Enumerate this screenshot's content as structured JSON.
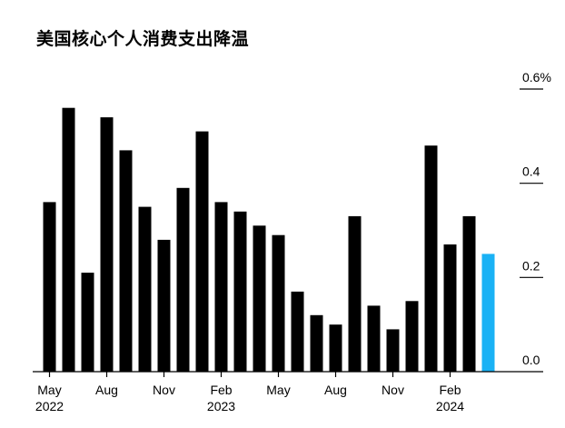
{
  "chart_data": {
    "type": "bar",
    "title": "美国核心个人消费支出降温",
    "xlabel": "",
    "ylabel": "",
    "ylim": [
      0,
      0.6
    ],
    "y_unit": "%",
    "y_ticks": [
      0.0,
      0.2,
      0.4,
      0.6
    ],
    "y_tick_labels": [
      "0.0",
      "0.2",
      "0.4",
      "0.6%"
    ],
    "categories": [
      "2022-05",
      "2022-06",
      "2022-07",
      "2022-08",
      "2022-09",
      "2022-10",
      "2022-11",
      "2022-12",
      "2023-01",
      "2023-02",
      "2023-03",
      "2023-04",
      "2023-05",
      "2023-06",
      "2023-07",
      "2023-08",
      "2023-09",
      "2023-10",
      "2023-11",
      "2023-12",
      "2024-01",
      "2024-02",
      "2024-03",
      "2024-04"
    ],
    "values": [
      0.36,
      0.56,
      0.21,
      0.54,
      0.47,
      0.35,
      0.28,
      0.39,
      0.51,
      0.36,
      0.34,
      0.31,
      0.29,
      0.17,
      0.12,
      0.1,
      0.33,
      0.14,
      0.09,
      0.15,
      0.48,
      0.27,
      0.33,
      0.25
    ],
    "highlight_index": 23,
    "x_tick_labels": [
      {
        "index": 0,
        "label": "May",
        "year": "2022"
      },
      {
        "index": 3,
        "label": "Aug",
        "year": ""
      },
      {
        "index": 6,
        "label": "Nov",
        "year": ""
      },
      {
        "index": 9,
        "label": "Feb",
        "year": "2023"
      },
      {
        "index": 12,
        "label": "May",
        "year": ""
      },
      {
        "index": 15,
        "label": "Aug",
        "year": ""
      },
      {
        "index": 18,
        "label": "Nov",
        "year": ""
      },
      {
        "index": 21,
        "label": "Feb",
        "year": "2024"
      }
    ],
    "colors": {
      "bar": "#000000",
      "highlight": "#1ab2f5",
      "axis": "#000000"
    },
    "grid": false,
    "legend": "none"
  }
}
